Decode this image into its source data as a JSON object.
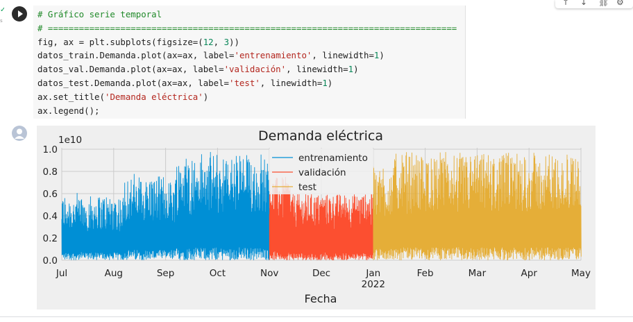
{
  "code": {
    "lines": [
      [
        {
          "t": "# Gráfico serie temporal",
          "c": "comment"
        }
      ],
      [
        {
          "t": "# ===============================================================================",
          "c": "comment"
        }
      ],
      [
        {
          "t": "fig, ax = plt.subplots(figsize=("
        },
        {
          "t": "12",
          "c": "num"
        },
        {
          "t": ", "
        },
        {
          "t": "3",
          "c": "num"
        },
        {
          "t": "))"
        }
      ],
      [
        {
          "t": "datos_train.Demanda.plot(ax=ax, label="
        },
        {
          "t": "'entrenamiento'",
          "c": "str"
        },
        {
          "t": ", linewidth="
        },
        {
          "t": "1",
          "c": "num"
        },
        {
          "t": ")"
        }
      ],
      [
        {
          "t": "datos_val.Demanda.plot(ax=ax, label="
        },
        {
          "t": "'validación'",
          "c": "str"
        },
        {
          "t": ", linewidth="
        },
        {
          "t": "1",
          "c": "num"
        },
        {
          "t": ")"
        }
      ],
      [
        {
          "t": "datos_test.Demanda.plot(ax=ax, label="
        },
        {
          "t": "'test'",
          "c": "str"
        },
        {
          "t": ", linewidth="
        },
        {
          "t": "1",
          "c": "num"
        },
        {
          "t": ")"
        }
      ],
      [
        {
          "t": "ax.set_title("
        },
        {
          "t": "'Demanda eléctrica'",
          "c": "str"
        },
        {
          "t": ")"
        }
      ],
      [
        {
          "t": "ax.legend();"
        }
      ]
    ]
  },
  "toolbar": {
    "icons": [
      "arrow-up-icon",
      "arrow-down-icon",
      "link-icon",
      "gear-icon"
    ]
  },
  "colors": {
    "train": "#008fd5",
    "val": "#fc4f30",
    "test": "#e5ae38",
    "plot_bg": "#f0f0f0",
    "grid": "#cbcbcb"
  },
  "chart_data": {
    "type": "line",
    "title": "Demanda eléctrica",
    "xlabel": "Fecha",
    "ylabel": "",
    "y_scale_label": "1e10",
    "ylim": [
      0.0,
      1.0
    ],
    "y_ticks": [
      "0.0",
      "0.2",
      "0.4",
      "0.6",
      "0.8",
      "1.0"
    ],
    "x_ticks": [
      {
        "label": "Jul",
        "month": 0
      },
      {
        "label": "Aug",
        "month": 1
      },
      {
        "label": "Sep",
        "month": 2
      },
      {
        "label": "Oct",
        "month": 3
      },
      {
        "label": "Nov",
        "month": 4
      },
      {
        "label": "Dec",
        "month": 5
      },
      {
        "label": "Jan",
        "month": 6,
        "sub": "2022"
      },
      {
        "label": "Feb",
        "month": 7
      },
      {
        "label": "Mar",
        "month": 8
      },
      {
        "label": "Apr",
        "month": 9
      },
      {
        "label": "May",
        "month": 10
      }
    ],
    "legend_position": "upper center",
    "series": [
      {
        "name": "entrenamiento",
        "start": "2021-07-01",
        "end": "2021-10-31",
        "approx_min": 0.0,
        "approx_max": 1.0
      },
      {
        "name": "validación",
        "start": "2021-11-01",
        "end": "2021-12-31",
        "approx_min": 0.0,
        "approx_max": 0.6
      },
      {
        "name": "test",
        "start": "2022-01-01",
        "end": "2022-05-01",
        "approx_min": 0.0,
        "approx_max": 1.0
      }
    ]
  }
}
